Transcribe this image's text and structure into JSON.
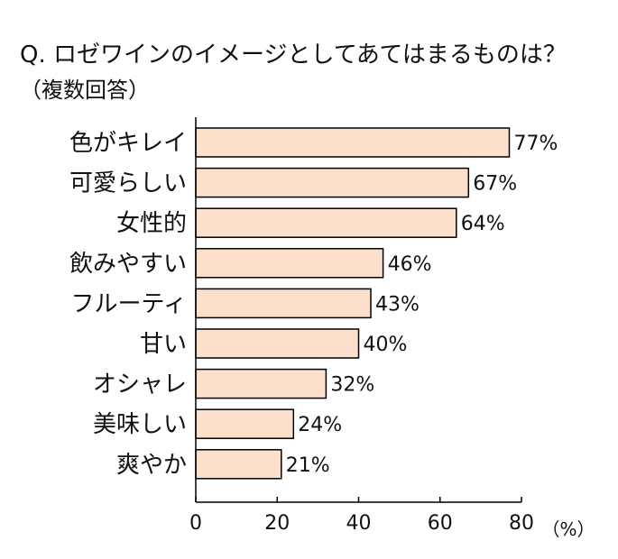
{
  "chart_data": {
    "type": "bar",
    "orientation": "horizontal",
    "title": "Q. ロゼワインのイメージとしてあてはまるものは？",
    "subtitle": "（複数回答）",
    "categories": [
      "色がキレイ",
      "可愛らしい",
      "女性的",
      "飲みやすい",
      "フルーティ",
      "甘い",
      "オシャレ",
      "美味しい",
      "爽やか"
    ],
    "values": [
      77,
      67,
      64,
      46,
      43,
      40,
      32,
      24,
      21
    ],
    "value_labels": [
      "77%",
      "67%",
      "64%",
      "46%",
      "43%",
      "40%",
      "32%",
      "24%",
      "21%"
    ],
    "xlim": [
      0,
      80
    ],
    "xticks": [
      "0",
      "20",
      "40",
      "60",
      "80"
    ],
    "xlabel": "（%）",
    "grid": false,
    "bar_color": "#fde0cc",
    "bar_edge_color": "#000000"
  }
}
